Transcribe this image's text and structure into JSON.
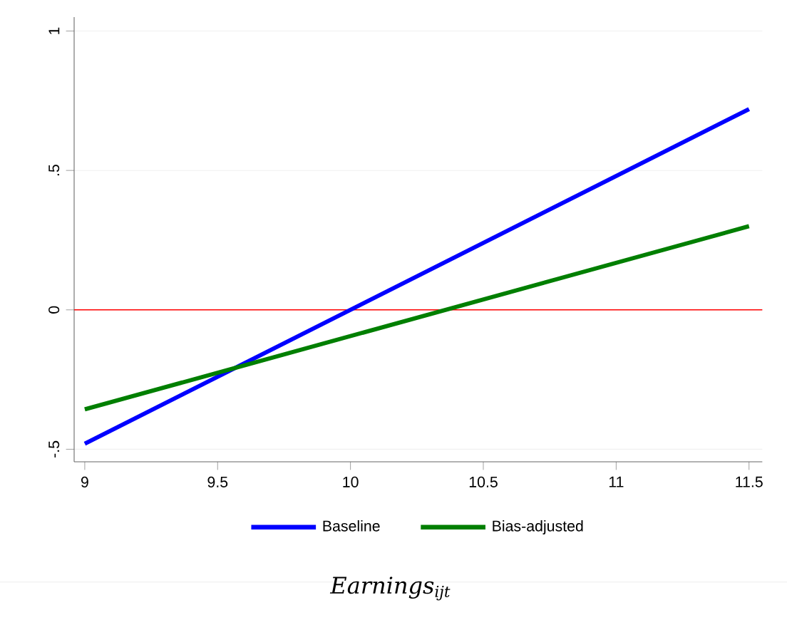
{
  "chart_data": {
    "type": "line",
    "x": [
      9,
      11.5
    ],
    "series": [
      {
        "name": "Baseline",
        "color": "#0000ff",
        "values": [
          -0.48,
          0.72
        ]
      },
      {
        "name": "Bias-adjusted",
        "color": "#007f00",
        "values": [
          -0.357,
          0.3
        ]
      }
    ],
    "xlabel": "Earnings$_{ijt}$",
    "xlim": [
      8.96,
      11.55
    ],
    "ylim": [
      -0.545,
      1.05
    ],
    "xticks": [
      9,
      9.5,
      10,
      10.5,
      11,
      11.5
    ],
    "yticks": [
      {
        "value": -0.5,
        "label": "-.5"
      },
      0,
      {
        "value": 0.5,
        "label": ".5"
      },
      1
    ],
    "ref_lines": [
      {
        "axis": "y",
        "value": 0,
        "color": "#ff0000"
      }
    ],
    "grid": "y",
    "legend": "bottom",
    "marker": "none",
    "line_style": "solid"
  }
}
